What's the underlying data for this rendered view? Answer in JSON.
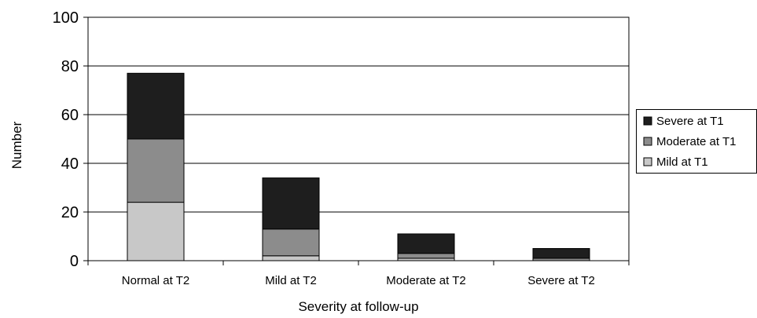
{
  "chart_data": {
    "type": "bar",
    "stacked": true,
    "title": "",
    "xlabel": "Severity at follow-up",
    "ylabel": "Number",
    "ylim": [
      0,
      100
    ],
    "yticks": [
      "0",
      "20",
      "40",
      "60",
      "80",
      "100"
    ],
    "grid": true,
    "legend_position": "right",
    "categories": [
      "Normal at T2",
      "Mild at T2",
      "Moderate at T2",
      "Severe at T2"
    ],
    "series": [
      {
        "name": "Mild at T1",
        "values": [
          24,
          2,
          1,
          0
        ],
        "color": "#c8c8c8"
      },
      {
        "name": "Moderate at T1",
        "values": [
          26,
          11,
          2,
          1
        ],
        "color": "#8c8c8c"
      },
      {
        "name": "Severe at T1",
        "values": [
          27,
          21,
          8,
          4
        ],
        "color": "#1e1e1e"
      }
    ],
    "legend_order": [
      "Severe at T1",
      "Moderate at T1",
      "Mild at T1"
    ]
  }
}
